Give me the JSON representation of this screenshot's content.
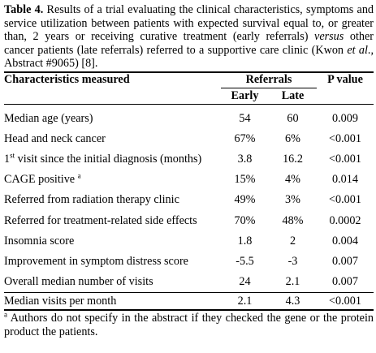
{
  "caption": {
    "label": "Table 4.",
    "text_1": " Results of a trial evaluating the clinical characteristics, symptoms and service utilization between patients with expected survival equal to, or greater than, 2 years or receiving curative treatment (early referrals) ",
    "versus": "versus",
    "text_2": " other cancer patients (late referrals) referred to a supportive care clinic (Kwon ",
    "et_al": "et al",
    "text_3": "., Abstract #9065) [8]."
  },
  "table": {
    "header": {
      "characteristics": "Characteristics measured",
      "referrals": "Referrals",
      "p_value": "P value",
      "early": "Early",
      "late": "Late"
    },
    "rows": [
      {
        "label": "Median age (years)",
        "early": "54",
        "late": "60",
        "p": "0.009"
      },
      {
        "label": "Head and neck cancer",
        "early": "67%",
        "late": "6%",
        "p": "<0.001"
      },
      {
        "label_pre": "1",
        "label_sup": "st",
        "label": " visit since the initial diagnosis (months)",
        "early": "3.8",
        "late": "16.2",
        "p": "<0.001"
      },
      {
        "label": "CAGE positive ",
        "label_sup": "a",
        "early": "15%",
        "late": "4%",
        "p": "0.014"
      },
      {
        "label": "Referred from radiation therapy clinic",
        "early": "49%",
        "late": "3%",
        "p": "<0.001"
      },
      {
        "label": "Referred for treatment-related side effects",
        "early": "70%",
        "late": "48%",
        "p": "0.0002"
      },
      {
        "label": "Insomnia score",
        "early": "1.8",
        "late": "2",
        "p": "0.004"
      },
      {
        "label": "Improvement in symptom distress score",
        "early": "-5.5",
        "late": "-3",
        "p": "0.007"
      },
      {
        "label": "Overall median number of visits",
        "early": "24",
        "late": "2.1",
        "p": "0.007"
      },
      {
        "label": "Median visits per month",
        "early": "2.1",
        "late": "4.3",
        "p": "<0.001"
      }
    ]
  },
  "footnote": {
    "mark": "a",
    "text": " Authors do not specify in the abstract if they checked the gene or the protein product the patients."
  }
}
